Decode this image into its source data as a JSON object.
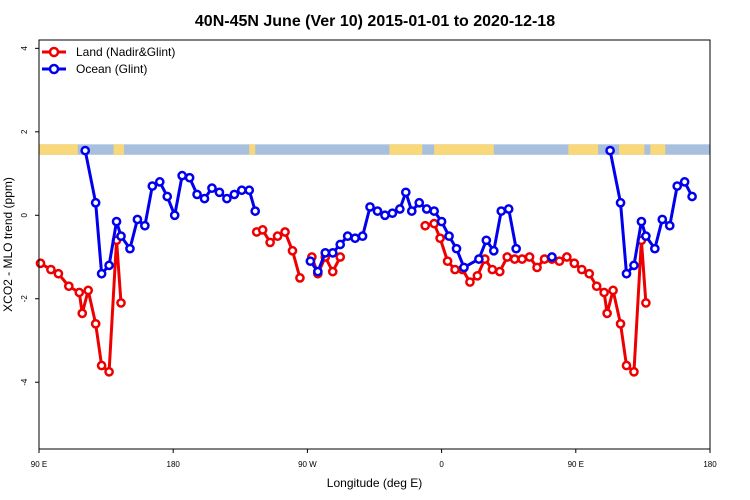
{
  "chart_data": {
    "type": "line",
    "title": "40N-45N June (Ver 10)   2015-01-01 to 2020-12-18",
    "xlabel": "Longitude (deg E)",
    "ylabel": "XCO2 - MLO trend (ppm)",
    "xlim": [
      90,
      540
    ],
    "ylim": [
      -5.6,
      4.2
    ],
    "x_ticks": [
      {
        "value": 90,
        "label": "90 E"
      },
      {
        "value": 180,
        "label": "180"
      },
      {
        "value": 270,
        "label": "90 W"
      },
      {
        "value": 360,
        "label": "0"
      },
      {
        "value": 450,
        "label": "90 E"
      },
      {
        "value": 540,
        "label": "180"
      }
    ],
    "y_ticks": [
      {
        "value": 4,
        "label": "4"
      },
      {
        "value": 2,
        "label": "2"
      },
      {
        "value": 0,
        "label": "0"
      },
      {
        "value": -2,
        "label": "-2"
      },
      {
        "value": -4,
        "label": "-4"
      }
    ],
    "legend_position": "top-left",
    "series": [
      {
        "name": "Land (Nadir&Glint)",
        "color": "#ee0000",
        "segments": [
          [
            [
              91,
              -1.15
            ],
            [
              98,
              -1.3
            ],
            [
              103,
              -1.4
            ],
            [
              110,
              -1.7
            ],
            [
              117,
              -1.85
            ],
            [
              119,
              -2.35
            ],
            [
              123,
              -1.8
            ],
            [
              128,
              -2.6
            ],
            [
              132,
              -3.6
            ],
            [
              137,
              -3.75
            ],
            [
              142,
              -0.6
            ],
            [
              145,
              -2.1
            ]
          ],
          [
            [
              236,
              -0.4
            ],
            [
              240,
              -0.35
            ],
            [
              245,
              -0.65
            ],
            [
              250,
              -0.5
            ],
            [
              255,
              -0.4
            ],
            [
              260,
              -0.85
            ],
            [
              265,
              -1.5
            ]
          ],
          [
            [
              273,
              -1.0
            ],
            [
              277,
              -1.4
            ],
            [
              282,
              -1.0
            ],
            [
              287,
              -1.35
            ],
            [
              292,
              -1.0
            ]
          ],
          [
            [
              349,
              -0.25
            ],
            [
              355,
              -0.2
            ],
            [
              359,
              -0.55
            ],
            [
              364,
              -1.1
            ],
            [
              369,
              -1.3
            ],
            [
              374,
              -1.3
            ],
            [
              379,
              -1.6
            ],
            [
              384,
              -1.45
            ],
            [
              389,
              -1.05
            ],
            [
              394,
              -1.3
            ],
            [
              399,
              -1.35
            ],
            [
              404,
              -1.0
            ],
            [
              409,
              -1.05
            ],
            [
              414,
              -1.05
            ],
            [
              419,
              -1.0
            ],
            [
              424,
              -1.25
            ],
            [
              429,
              -1.05
            ],
            [
              434,
              -1.05
            ],
            [
              439,
              -1.1
            ],
            [
              444,
              -1.0
            ],
            [
              449,
              -1.15
            ],
            [
              454,
              -1.3
            ],
            [
              459,
              -1.4
            ],
            [
              464,
              -1.7
            ],
            [
              469,
              -1.85
            ],
            [
              471,
              -2.35
            ],
            [
              475,
              -1.8
            ],
            [
              480,
              -2.6
            ],
            [
              484,
              -3.6
            ],
            [
              489,
              -3.75
            ],
            [
              494,
              -0.6
            ],
            [
              497,
              -2.1
            ]
          ]
        ]
      },
      {
        "name": "Ocean (Glint)",
        "color": "#0000ee",
        "segments": [
          [
            [
              121,
              1.55
            ],
            [
              128,
              0.3
            ],
            [
              132,
              -1.4
            ],
            [
              137,
              -1.2
            ],
            [
              142,
              -0.15
            ],
            [
              145,
              -0.5
            ],
            [
              151,
              -0.8
            ],
            [
              156,
              -0.1
            ],
            [
              161,
              -0.25
            ],
            [
              166,
              0.7
            ],
            [
              171,
              0.8
            ],
            [
              176,
              0.45
            ],
            [
              181,
              0.0
            ],
            [
              186,
              0.95
            ],
            [
              191,
              0.9
            ],
            [
              196,
              0.5
            ],
            [
              201,
              0.4
            ],
            [
              206,
              0.65
            ],
            [
              211,
              0.55
            ],
            [
              216,
              0.4
            ],
            [
              221,
              0.5
            ],
            [
              226,
              0.6
            ],
            [
              231,
              0.6
            ],
            [
              235,
              0.1
            ]
          ],
          [
            [
              272,
              -1.1
            ],
            [
              277,
              -1.35
            ],
            [
              282,
              -0.9
            ],
            [
              287,
              -0.9
            ],
            [
              292,
              -0.7
            ],
            [
              297,
              -0.5
            ],
            [
              302,
              -0.55
            ],
            [
              307,
              -0.5
            ],
            [
              312,
              0.2
            ],
            [
              317,
              0.1
            ],
            [
              322,
              0.0
            ],
            [
              327,
              0.05
            ],
            [
              332,
              0.15
            ],
            [
              336,
              0.55
            ],
            [
              340,
              0.1
            ],
            [
              345,
              0.3
            ],
            [
              350,
              0.15
            ],
            [
              355,
              0.1
            ],
            [
              360,
              -0.15
            ],
            [
              365,
              -0.5
            ],
            [
              370,
              -0.8
            ],
            [
              375,
              -1.25
            ],
            [
              385,
              -1.05
            ],
            [
              390,
              -0.6
            ],
            [
              395,
              -0.85
            ],
            [
              400,
              0.1
            ],
            [
              405,
              0.15
            ],
            [
              410,
              -0.8
            ]
          ],
          [
            [
              434,
              -1.0
            ]
          ],
          [
            [
              473,
              1.55
            ],
            [
              480,
              0.3
            ],
            [
              484,
              -1.4
            ],
            [
              489,
              -1.2
            ],
            [
              494,
              -0.15
            ],
            [
              497,
              -0.5
            ],
            [
              503,
              -0.8
            ],
            [
              508,
              -0.1
            ],
            [
              513,
              -0.25
            ],
            [
              518,
              0.7
            ],
            [
              523,
              0.8
            ],
            [
              528,
              0.45
            ]
          ]
        ]
      }
    ],
    "land_ocean_strip": {
      "y_range": [
        1.45,
        1.7
      ],
      "ocean_color": "#a8c0dd",
      "land_color": "#f8d878",
      "land_ranges": [
        [
          90,
          116
        ],
        [
          140,
          147
        ],
        [
          231,
          235
        ],
        [
          325,
          347
        ],
        [
          355,
          395
        ],
        [
          445,
          465
        ],
        [
          479,
          496
        ],
        [
          500,
          510
        ]
      ]
    }
  }
}
